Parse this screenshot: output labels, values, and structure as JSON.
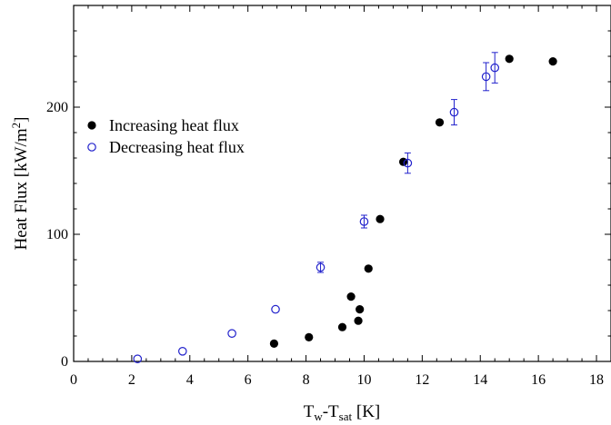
{
  "chart_data": {
    "type": "scatter",
    "title": "",
    "xlabel": {
      "main": "T",
      "sub1": "w",
      "mid": "-T",
      "sub2": "sat",
      "unit": " [K]"
    },
    "ylabel": {
      "main": "Heat Flux [kW/m",
      "sup": "2",
      "end": "]"
    },
    "xlim": [
      0,
      18.5
    ],
    "ylim": [
      0,
      280
    ],
    "x_ticks": [
      0,
      2,
      4,
      6,
      8,
      10,
      12,
      14,
      16,
      18
    ],
    "y_ticks": [
      0,
      100,
      200
    ],
    "grid": false,
    "legend_position": "left",
    "series": [
      {
        "name": "Increasing heat flux",
        "marker": "filled-circle",
        "color": "#000000",
        "points": [
          {
            "x": 6.9,
            "y": 14
          },
          {
            "x": 8.1,
            "y": 19
          },
          {
            "x": 9.25,
            "y": 27
          },
          {
            "x": 9.55,
            "y": 51
          },
          {
            "x": 9.8,
            "y": 32
          },
          {
            "x": 9.85,
            "y": 41
          },
          {
            "x": 10.15,
            "y": 73
          },
          {
            "x": 10.55,
            "y": 112
          },
          {
            "x": 11.35,
            "y": 157
          },
          {
            "x": 12.6,
            "y": 188
          },
          {
            "x": 15.0,
            "y": 238
          },
          {
            "x": 16.5,
            "y": 236
          }
        ]
      },
      {
        "name": "Decreasing heat flux",
        "marker": "open-circle",
        "color": "#2222cc",
        "points": [
          {
            "x": 2.2,
            "y": 2,
            "err": 0
          },
          {
            "x": 3.75,
            "y": 8,
            "err": 0
          },
          {
            "x": 5.45,
            "y": 22,
            "err": 0
          },
          {
            "x": 6.95,
            "y": 41,
            "err": 0
          },
          {
            "x": 8.5,
            "y": 74,
            "err": 4
          },
          {
            "x": 10.0,
            "y": 110,
            "err": 5
          },
          {
            "x": 11.5,
            "y": 156,
            "err": 8
          },
          {
            "x": 13.1,
            "y": 196,
            "err": 10
          },
          {
            "x": 14.2,
            "y": 224,
            "err": 11
          },
          {
            "x": 14.5,
            "y": 231,
            "err": 12
          }
        ]
      }
    ],
    "colors": {
      "axis": "#000000",
      "increasing": "#000000",
      "decreasing": "#2222cc"
    }
  }
}
